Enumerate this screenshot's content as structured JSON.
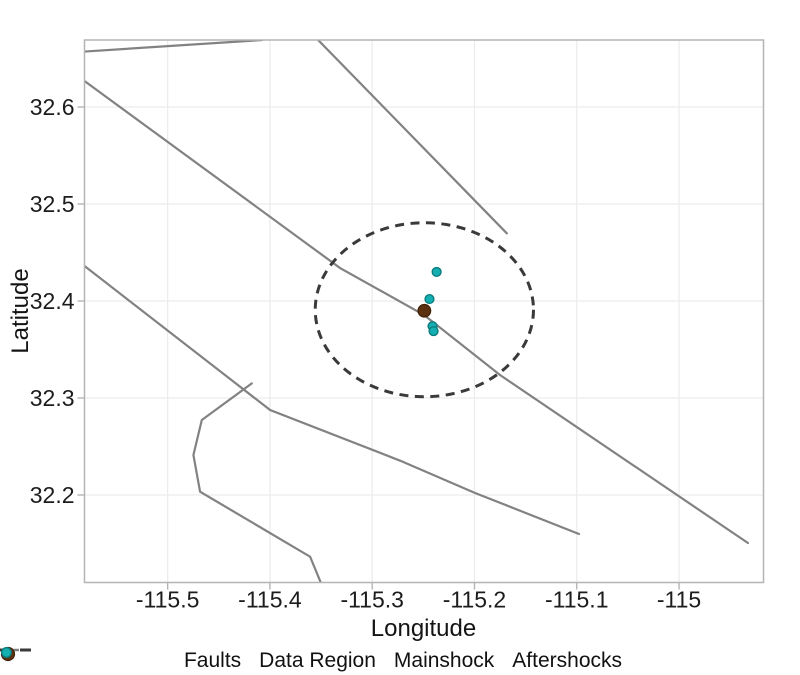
{
  "chart_data": {
    "type": "scatter",
    "title": "",
    "xlabel": "Longitude",
    "ylabel": "Latitude",
    "xlim": [
      -115.5813,
      -114.9174
    ],
    "ylim": [
      32.1098,
      32.6691
    ],
    "grid": true,
    "legend_position": "bottom",
    "x_ticks": {
      "values": [
        -115.5,
        -115.4,
        -115.3,
        -115.2,
        -115.1,
        -115.0
      ],
      "labels": [
        "-115.5",
        "-115.4",
        "-115.3",
        "-115.2",
        "-115.1",
        "-115"
      ]
    },
    "y_ticks": {
      "values": [
        32.2,
        32.3,
        32.4,
        32.5,
        32.6
      ],
      "labels": [
        "32.2",
        "32.3",
        "32.4",
        "32.5",
        "32.6"
      ]
    },
    "faults": {
      "label": "Faults",
      "color": "#828282",
      "line_width": 2.2,
      "lines": [
        [
          [
            -115.5813,
            32.6572
          ],
          [
            -115.4076,
            32.6691
          ]
        ],
        [
          [
            -115.5813,
            32.6268
          ],
          [
            -115.3314,
            32.434
          ],
          [
            -115.2493,
            32.3856
          ],
          [
            -115.175,
            32.3237
          ],
          [
            -114.9326,
            32.1505
          ]
        ],
        [
          [
            -115.5813,
            32.4361
          ],
          [
            -115.3998,
            32.2876
          ],
          [
            -115.2727,
            32.2354
          ],
          [
            -115.1994,
            32.2021
          ],
          [
            -115.0978,
            32.1598
          ]
        ],
        [
          [
            -115.4177,
            32.3151
          ],
          [
            -115.4666,
            32.2773
          ],
          [
            -115.4748,
            32.2412
          ],
          [
            -115.4683,
            32.2034
          ],
          [
            -115.3607,
            32.1364
          ],
          [
            -115.349,
            32.1065
          ]
        ],
        [
          [
            -115.3529,
            32.6691
          ],
          [
            -115.1684,
            32.4698
          ]
        ]
      ]
    },
    "data_region": {
      "label": "Data Region",
      "style": "dashed",
      "color": "#3a3a3a",
      "line_width": 3,
      "dash": [
        9,
        6.5
      ],
      "center": {
        "lon": -115.249,
        "lat": 32.391
      },
      "radius_lon_deg": 0.1067,
      "radius_lat_deg": 0.0897
    },
    "mainshock": {
      "label": "Mainshock",
      "fill": "#5b3111",
      "stroke": "#3f1f06",
      "radius_px": 6.3,
      "points": [
        {
          "lon": -115.249,
          "lat": 32.39
        }
      ]
    },
    "aftershocks": {
      "label": "Aftershocks",
      "fill": "#15afb1",
      "stroke": "#0a7c7e",
      "radius_px": 4.4,
      "points": [
        {
          "lon": -115.237,
          "lat": 32.43
        },
        {
          "lon": -115.244,
          "lat": 32.402
        },
        {
          "lon": -115.241,
          "lat": 32.374
        },
        {
          "lon": -115.24,
          "lat": 32.369
        }
      ]
    },
    "style": {
      "background": "#ffffff",
      "grid_color": "#ececec",
      "border_color": "#b4b4b4",
      "tick_color": "#b4b4b4",
      "tick_label_color": "#1c1c1c"
    }
  }
}
